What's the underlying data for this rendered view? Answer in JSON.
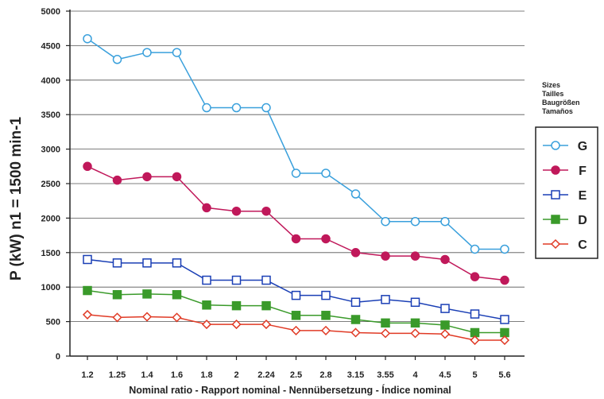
{
  "chart_data": {
    "type": "line",
    "ylabel": "P (kW)  n1 = 1500 min-1",
    "xlabel": "Nominal ratio - Rapport nominal - Nennübersetzung - Índice nominal",
    "ylim": [
      0,
      5000
    ],
    "yticks": [
      "0",
      "500",
      "1000",
      "1500",
      "2000",
      "2500",
      "3000",
      "3500",
      "4000",
      "4500",
      "5000"
    ],
    "categories": [
      "1.2",
      "1.25",
      "1.4",
      "1.6",
      "1.8",
      "2",
      "2.24",
      "2.5",
      "2.8",
      "3.15",
      "3.55",
      "4",
      "4.5",
      "5",
      "5.6"
    ],
    "grid": "horizontal",
    "legend_position": "right",
    "legend_heading": [
      "Sizes",
      "Tailles",
      "Baugrößen",
      "Tamaños"
    ],
    "series": [
      {
        "name": "G",
        "color": "#3aa0dc",
        "marker": "circle-open",
        "values": [
          4600,
          4300,
          4400,
          4400,
          3600,
          3600,
          3600,
          2650,
          2650,
          2350,
          1950,
          1950,
          1950,
          1550,
          1550
        ]
      },
      {
        "name": "F",
        "color": "#c0185a",
        "marker": "circle-filled",
        "values": [
          2750,
          2550,
          2600,
          2600,
          2150,
          2100,
          2100,
          1700,
          1700,
          1500,
          1450,
          1450,
          1400,
          1150,
          1100
        ]
      },
      {
        "name": "E",
        "color": "#1a3fb5",
        "marker": "square-open",
        "values": [
          1400,
          1350,
          1350,
          1350,
          1100,
          1100,
          1100,
          880,
          880,
          780,
          820,
          780,
          690,
          610,
          530
        ]
      },
      {
        "name": "D",
        "color": "#3a9a2a",
        "marker": "square-filled",
        "values": [
          950,
          890,
          900,
          890,
          740,
          730,
          730,
          590,
          590,
          530,
          480,
          480,
          450,
          340,
          340
        ]
      },
      {
        "name": "C",
        "color": "#e03a25",
        "marker": "diamond-open",
        "values": [
          600,
          560,
          570,
          560,
          460,
          460,
          460,
          370,
          370,
          340,
          330,
          330,
          320,
          230,
          230
        ]
      }
    ]
  }
}
